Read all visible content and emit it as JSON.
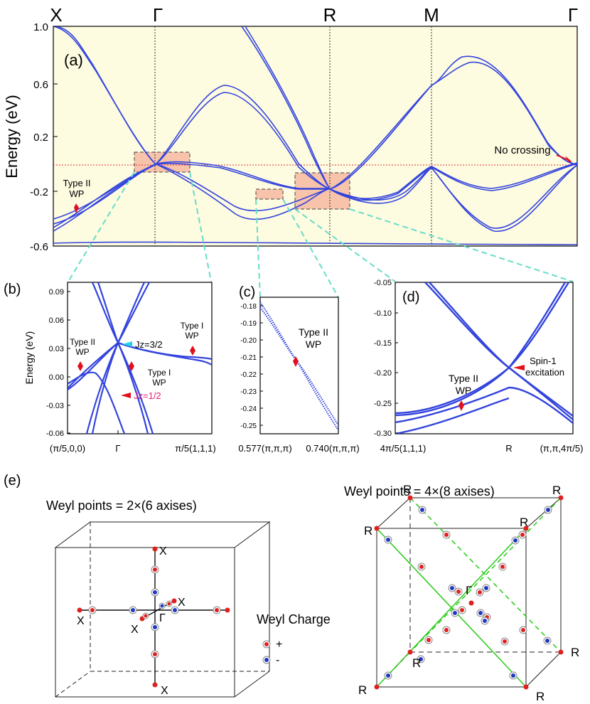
{
  "main_panel": {
    "label": "(a)",
    "ylabel": "Energy (eV)",
    "yticks": [
      "1.0",
      "0.6",
      "0.2",
      "-0.2",
      "-0.6"
    ],
    "kpoints": [
      "X",
      "Γ",
      "R",
      "M",
      "Γ"
    ],
    "annot_no_crossing": "No crossing",
    "annot_type2_l1": "Type II",
    "annot_type2_l2": "WP"
  },
  "panel_b": {
    "label": "(b)",
    "ylabel": "Energy (eV)",
    "yticks": [
      "0.09",
      "0.06",
      "0.03",
      "0.00",
      "-0.03",
      "-0.06"
    ],
    "xticks": [
      "(π/5,0,0)",
      "Γ",
      "π/5(1,1,1)"
    ],
    "typeI_top_l1": "Type I",
    "typeI_top_l2": "WP",
    "typeII_l1": "Type II",
    "typeII_l2": "WP",
    "typeI_mid_l1": "Type I",
    "typeI_mid_l2": "WP",
    "jz32": "Jz=3/2",
    "jz12": "Jz=1/2"
  },
  "panel_c": {
    "label": "(c)",
    "yticks": [
      "-0.18",
      "-0.19",
      "-0.20",
      "-0.21",
      "-0.22",
      "-0.23",
      "-0.24",
      "-0.25"
    ],
    "xticks": [
      "0.577(π,π,π)",
      "0.740(π,π,π)"
    ],
    "annot_l1": "Type II",
    "annot_l2": "WP"
  },
  "panel_d": {
    "label": "(d)",
    "yticks": [
      "-0.05",
      "-0.10",
      "-0.15",
      "-0.20",
      "-0.25",
      "-0.30"
    ],
    "xticks": [
      "4π/5(1,1,1)",
      "R",
      "(π,π,4π/5)"
    ],
    "spin1_l1": "Spin-1",
    "spin1_l2": "excitation",
    "type2_l1": "Type II",
    "type2_l2": "WP"
  },
  "panel_e": {
    "label": "(e)",
    "title_left": "Weyl points = 2×(6 axises)",
    "title_right": "Weyl points = 4×(8 axises)",
    "x_label": "X",
    "gamma_label": "Γ",
    "r_label": "R",
    "legend_title": "Weyl Charge",
    "legend_plus": "+",
    "legend_minus": "-"
  },
  "colors": {
    "band": "#3344dd",
    "bg": "#fdfbe0",
    "zoom": "#f6b8a0",
    "connector": "#66ddc8",
    "arrow": "#e0101c",
    "plus": "#e02020",
    "minus": "#2038c0",
    "green": "#33cc22"
  }
}
